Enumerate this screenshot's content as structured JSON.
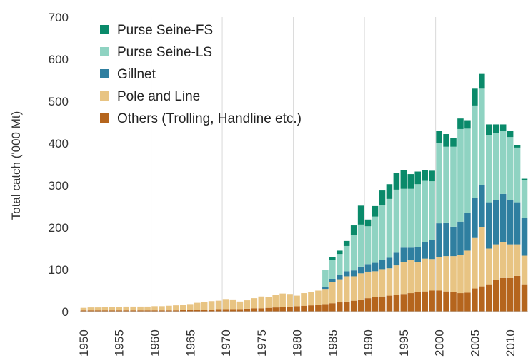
{
  "chart_data": {
    "type": "bar",
    "stacked": true,
    "ylabel": "Total catch ('000 Mt)",
    "xlabel": "",
    "ylim": [
      0,
      700
    ],
    "yticks": [
      0,
      100,
      200,
      300,
      400,
      500,
      600,
      700
    ],
    "xticks": [
      "1950",
      "1955",
      "1960",
      "1965",
      "1970",
      "1975",
      "1980",
      "1985",
      "1990",
      "1995",
      "2000",
      "2005",
      "2010"
    ],
    "vertical_gridlines_at": [
      "1960",
      "1970",
      "1980",
      "1990",
      "2000"
    ],
    "legend_position": "top-left",
    "categories": [
      "1950",
      "1951",
      "1952",
      "1953",
      "1954",
      "1955",
      "1956",
      "1957",
      "1958",
      "1959",
      "1960",
      "1961",
      "1962",
      "1963",
      "1964",
      "1965",
      "1966",
      "1967",
      "1968",
      "1969",
      "1970",
      "1971",
      "1972",
      "1973",
      "1974",
      "1975",
      "1976",
      "1977",
      "1978",
      "1979",
      "1980",
      "1981",
      "1982",
      "1983",
      "1984",
      "1985",
      "1986",
      "1987",
      "1988",
      "1989",
      "1990",
      "1991",
      "1992",
      "1993",
      "1994",
      "1995",
      "1996",
      "1997",
      "1998",
      "1999",
      "2000",
      "2001",
      "2002",
      "2003",
      "2004",
      "2005",
      "2006",
      "2007",
      "2008",
      "2009",
      "2010",
      "2011",
      "2012"
    ],
    "series": [
      {
        "name": "Others (Trolling, Handline etc.)",
        "color": "#b5651d",
        "values": [
          3,
          3,
          3,
          3,
          3,
          3,
          3,
          3,
          3,
          3,
          3,
          3,
          3,
          3,
          4,
          4,
          5,
          5,
          5,
          6,
          6,
          6,
          6,
          7,
          8,
          8,
          9,
          10,
          11,
          12,
          13,
          14,
          15,
          17,
          18,
          20,
          22,
          24,
          26,
          29,
          32,
          34,
          36,
          38,
          40,
          42,
          44,
          46,
          48,
          50,
          50,
          48,
          46,
          44,
          45,
          55,
          60,
          65,
          75,
          80,
          80,
          85,
          65
        ]
      },
      {
        "name": "Pole and Line",
        "color": "#e8c483",
        "values": [
          6,
          7,
          7,
          8,
          8,
          8,
          9,
          9,
          9,
          9,
          10,
          10,
          11,
          12,
          12,
          14,
          16,
          18,
          20,
          20,
          24,
          23,
          18,
          20,
          24,
          28,
          25,
          30,
          32,
          30,
          25,
          30,
          32,
          33,
          36,
          50,
          55,
          60,
          58,
          62,
          63,
          62,
          65,
          65,
          70,
          75,
          78,
          72,
          78,
          75,
          80,
          84,
          86,
          90,
          100,
          120,
          140,
          85,
          85,
          85,
          80,
          75,
          68
        ]
      },
      {
        "name": "Gillnet",
        "color": "#2f7fa0",
        "values": [
          0,
          0,
          0,
          0,
          0,
          0,
          0,
          0,
          0,
          0,
          0,
          0,
          0,
          0,
          0,
          0,
          0,
          0,
          0,
          0,
          0,
          0,
          0,
          0,
          0,
          0,
          0,
          0,
          0,
          0,
          0,
          0,
          0,
          0,
          5,
          8,
          10,
          12,
          14,
          16,
          18,
          20,
          22,
          25,
          30,
          35,
          30,
          35,
          40,
          45,
          80,
          80,
          70,
          80,
          90,
          95,
          100,
          110,
          105,
          115,
          105,
          100,
          90
        ]
      },
      {
        "name": "Purse Seine-LS",
        "color": "#8fd3c2",
        "values": [
          0,
          0,
          0,
          0,
          0,
          0,
          0,
          0,
          0,
          0,
          0,
          0,
          0,
          0,
          0,
          0,
          0,
          0,
          0,
          0,
          0,
          0,
          0,
          0,
          0,
          0,
          0,
          0,
          0,
          0,
          0,
          0,
          0,
          0,
          40,
          45,
          50,
          60,
          85,
          100,
          90,
          110,
          130,
          140,
          150,
          140,
          140,
          150,
          145,
          140,
          190,
          180,
          190,
          220,
          200,
          220,
          230,
          160,
          160,
          150,
          150,
          130,
          90
        ]
      },
      {
        "name": "Purse Seine-FS",
        "color": "#0a8a6a",
        "values": [
          0,
          0,
          0,
          0,
          0,
          0,
          0,
          0,
          0,
          0,
          0,
          0,
          0,
          0,
          0,
          0,
          0,
          0,
          0,
          0,
          0,
          0,
          0,
          0,
          0,
          0,
          0,
          0,
          0,
          0,
          0,
          0,
          0,
          0,
          0,
          7,
          8,
          12,
          22,
          45,
          16,
          25,
          35,
          35,
          40,
          45,
          35,
          30,
          25,
          25,
          30,
          30,
          20,
          25,
          20,
          40,
          35,
          25,
          20,
          15,
          15,
          5,
          3
        ]
      }
    ]
  }
}
